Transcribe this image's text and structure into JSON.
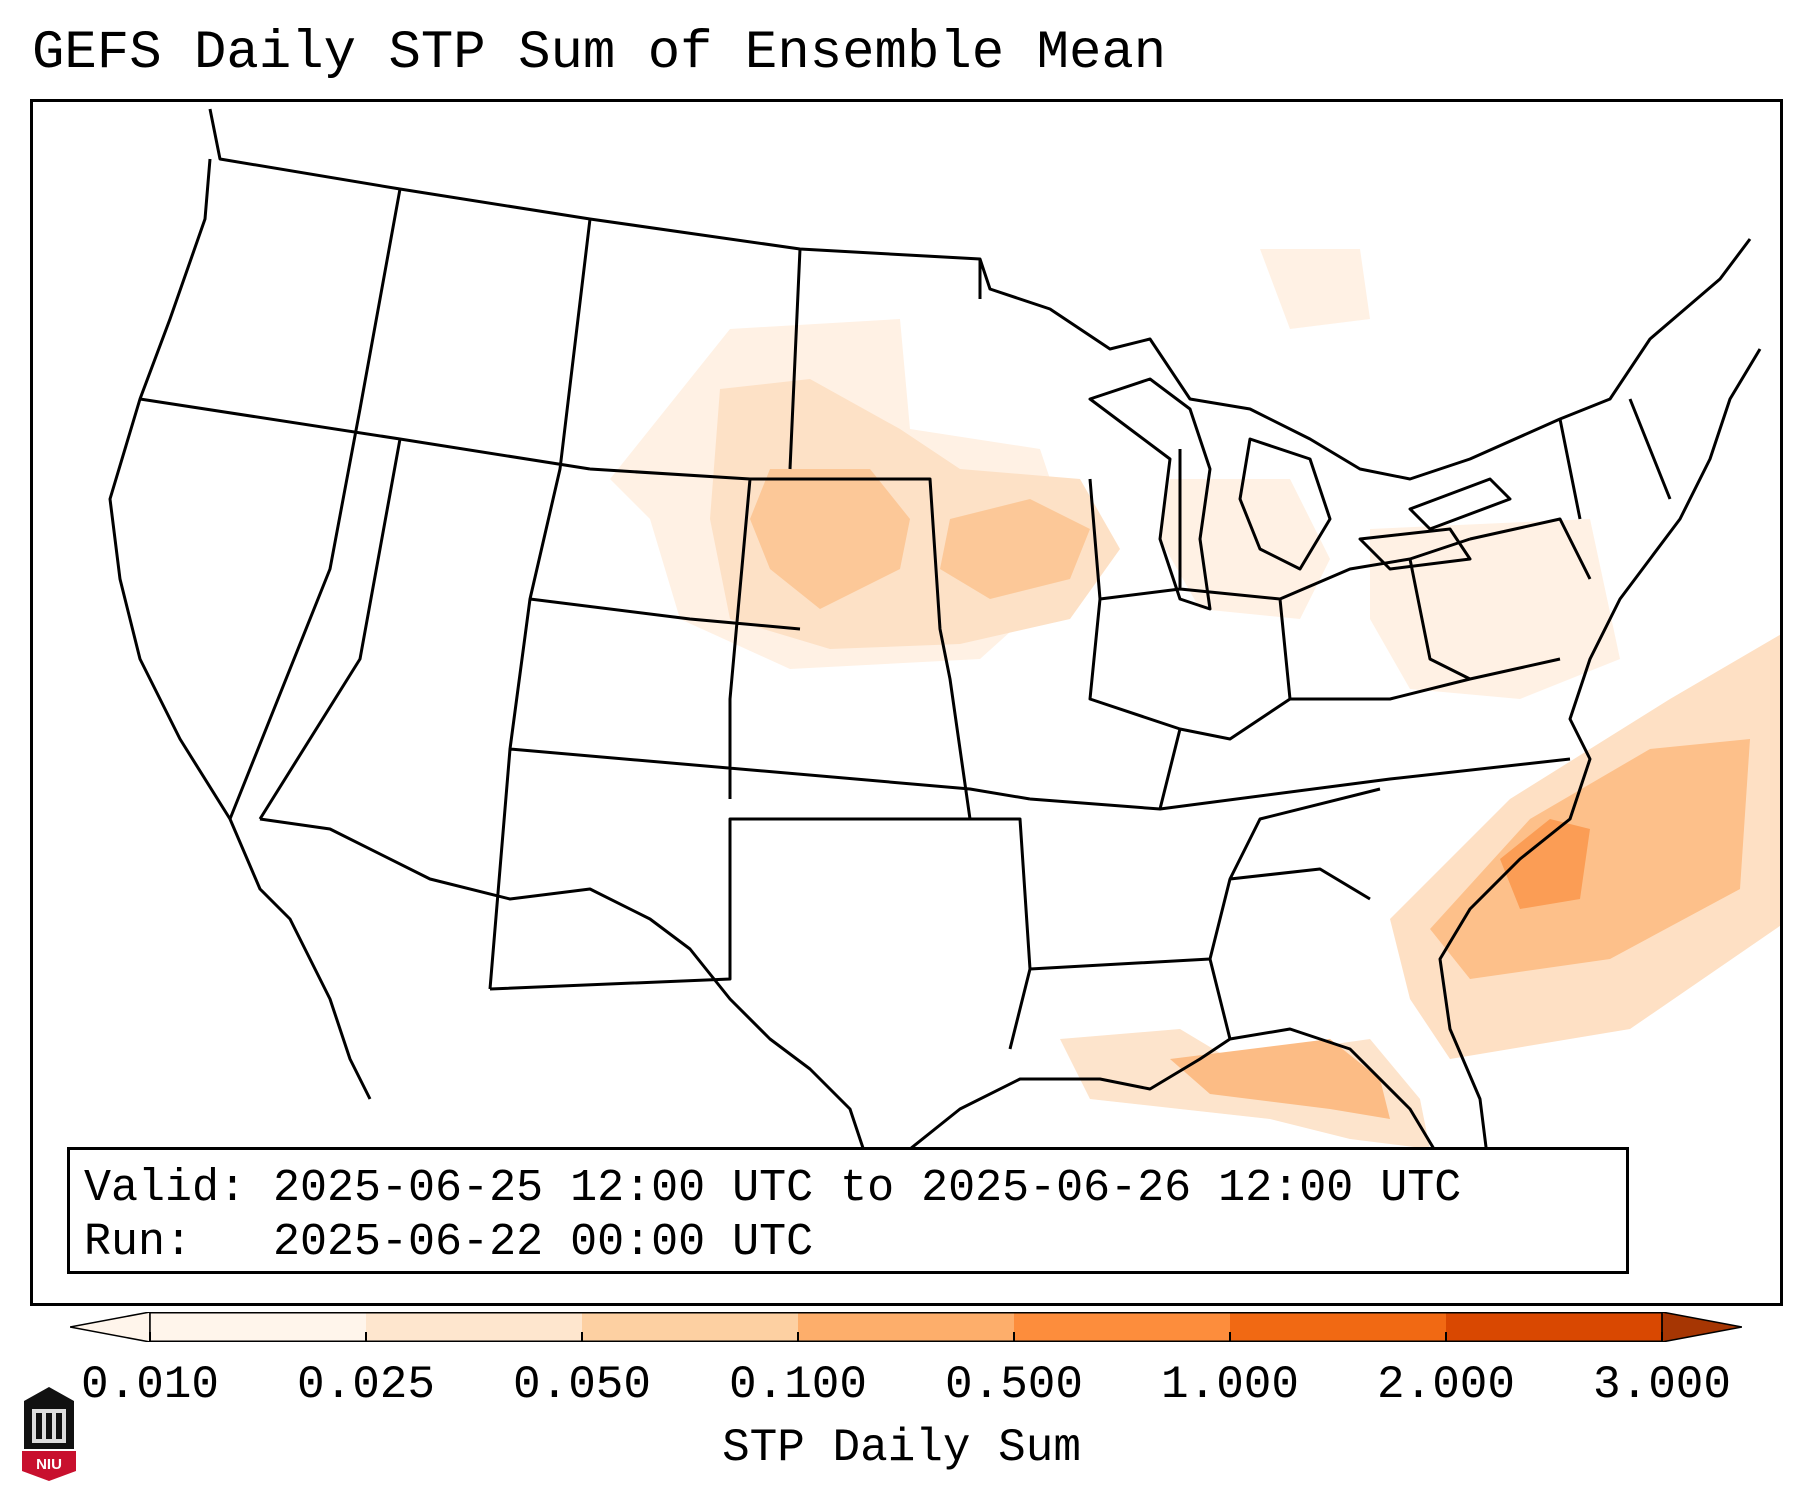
{
  "title": "GEFS Daily STP Sum of Ensemble Mean",
  "info": {
    "valid": "Valid: 2025-06-25 12:00 UTC to 2025-06-26 12:00 UTC",
    "run": "Run:   2025-06-22 00:00 UTC"
  },
  "colorbar": {
    "label": "STP Daily Sum",
    "ticks": [
      "0.010",
      "0.025",
      "0.050",
      "0.100",
      "0.500",
      "1.000",
      "2.000",
      "3.000"
    ],
    "colors": [
      "#fff5eb",
      "#fee6ce",
      "#fdd0a2",
      "#fdae6b",
      "#fd8d3c",
      "#f16913",
      "#d94801",
      "#a63603"
    ],
    "extend": "both"
  },
  "logo": {
    "text": "NIU",
    "color": "#c8102e"
  },
  "map": {
    "projection": "CONUS Lambert conformal",
    "field": "STP daily sum (ensemble mean)",
    "highlighted_regions": [
      {
        "region": "South Dakota / Nebraska",
        "level": "0.05–0.10"
      },
      {
        "region": "Iowa / southern Minnesota / Wisconsin",
        "level": "0.05–0.10"
      },
      {
        "region": "Southern Michigan / Ohio / New England",
        "level": "0.01–0.025"
      },
      {
        "region": "Carolinas coast and western Atlantic",
        "level": "0.10–0.50"
      },
      {
        "region": "Florida panhandle / Gulf coast",
        "level": "0.10–0.50"
      },
      {
        "region": "Montana / North Dakota / Ontario",
        "level": "0.01–0.05"
      }
    ]
  }
}
